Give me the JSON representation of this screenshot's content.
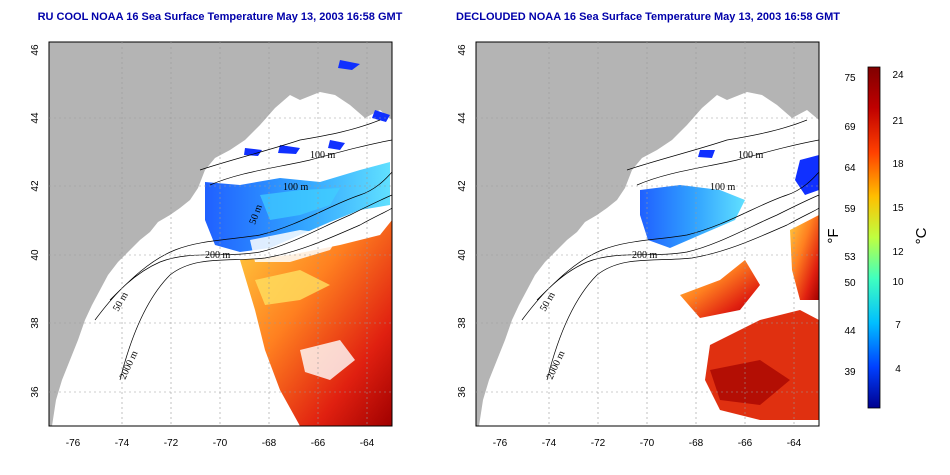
{
  "panels": [
    {
      "title": "RU COOL NOAA 16 Sea Surface Temperature May 13, 2003 16:58 GMT",
      "contour_labels": [
        "100 m",
        "100 m",
        "50 m",
        "200 m",
        "50 m",
        "2000 m"
      ]
    },
    {
      "title": "DECLOUDED NOAA 16 Sea Surface Temperature May 13, 2003 16:58 GMT",
      "contour_labels": [
        "100 m",
        "100 m",
        "200 m",
        "50 m",
        "2000 m"
      ]
    }
  ],
  "axes": {
    "lon_ticks": [
      "-76",
      "-74",
      "-72",
      "-70",
      "-68",
      "-66",
      "-64"
    ],
    "lat_ticks": [
      "46",
      "44",
      "42",
      "40",
      "38",
      "36"
    ]
  },
  "colorbar": {
    "fahrenheit_label": "°F",
    "celsius_label": "°C",
    "fahrenheit_ticks": [
      "75",
      "69",
      "64",
      "59",
      "53",
      "50",
      "44",
      "39"
    ],
    "celsius_ticks": [
      "24",
      "21",
      "18",
      "15",
      "12",
      "10",
      "7",
      "4"
    ],
    "colors": [
      "#00008f",
      "#0040ff",
      "#00bfff",
      "#40ffbf",
      "#bfff40",
      "#ffbf00",
      "#ff4000",
      "#bf0000",
      "#800000"
    ]
  },
  "colors": {
    "land": "#b4b4b4",
    "cloud": "#ffffff",
    "title": "#0000aa"
  }
}
